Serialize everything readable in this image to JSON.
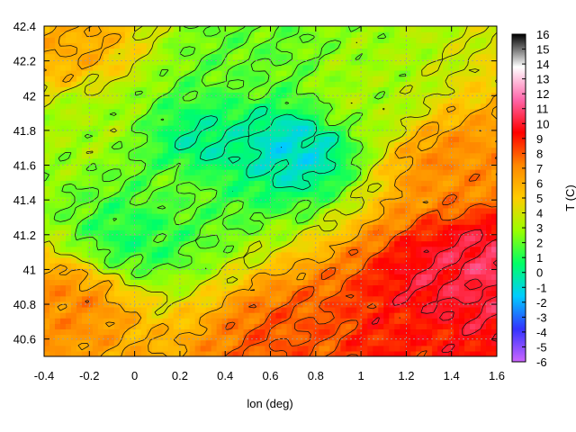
{
  "chart_data": {
    "type": "heatmap",
    "title": "",
    "xlabel": "lon (deg)",
    "ylabel": "",
    "colorbar_label": "T (C)",
    "xlim": [
      -0.4,
      1.6
    ],
    "ylim": [
      40.5,
      42.4
    ],
    "x_ticks": [
      "-0.4",
      "-0.2",
      "0",
      "0.2",
      "0.4",
      "0.6",
      "0.8",
      "1",
      "1.2",
      "1.4",
      "1.6"
    ],
    "y_ticks": [
      "40.6",
      "40.8",
      "41",
      "41.2",
      "41.4",
      "41.6",
      "41.8",
      "42",
      "42.2",
      "42.4"
    ],
    "colorbar_range": [
      -6,
      16
    ],
    "colorbar_ticks": [
      "16",
      "15",
      "14",
      "13",
      "12",
      "11",
      "10",
      "9",
      "8",
      "7",
      "6",
      "5",
      "4",
      "3",
      "2",
      "1",
      "0",
      "-1",
      "-2",
      "-3",
      "-4",
      "-5",
      "-6"
    ],
    "grid": true,
    "contours": true,
    "colormap": [
      "#cc66ff",
      "#3333ff",
      "#00ccff",
      "#00ff66",
      "#99ff00",
      "#ffcc00",
      "#ff8800",
      "#ff0000",
      "#ff66aa",
      "#ffffff",
      "#000000"
    ],
    "field_features": [
      {
        "lon": 0.7,
        "lat": 41.7,
        "value": -1
      },
      {
        "lon": 0.3,
        "lat": 41.7,
        "value": 0
      },
      {
        "lon": 0.0,
        "lat": 41.2,
        "value": 1
      },
      {
        "lon": 0.2,
        "lat": 41.5,
        "value": 2
      },
      {
        "lon": -0.2,
        "lat": 41.8,
        "value": 3
      },
      {
        "lon": 0.5,
        "lat": 42.2,
        "value": 2
      },
      {
        "lon": 1.0,
        "lat": 42.0,
        "value": 3
      },
      {
        "lon": 1.4,
        "lat": 40.9,
        "value": 10
      },
      {
        "lon": 1.55,
        "lat": 41.0,
        "value": 10.5
      },
      {
        "lon": 1.2,
        "lat": 40.6,
        "value": 9
      },
      {
        "lon": 0.7,
        "lat": 40.6,
        "value": 8
      },
      {
        "lon": -0.3,
        "lat": 40.8,
        "value": 7
      },
      {
        "lon": 1.4,
        "lat": 41.6,
        "value": 7
      },
      {
        "lon": -0.3,
        "lat": 42.3,
        "value": 6
      }
    ]
  }
}
